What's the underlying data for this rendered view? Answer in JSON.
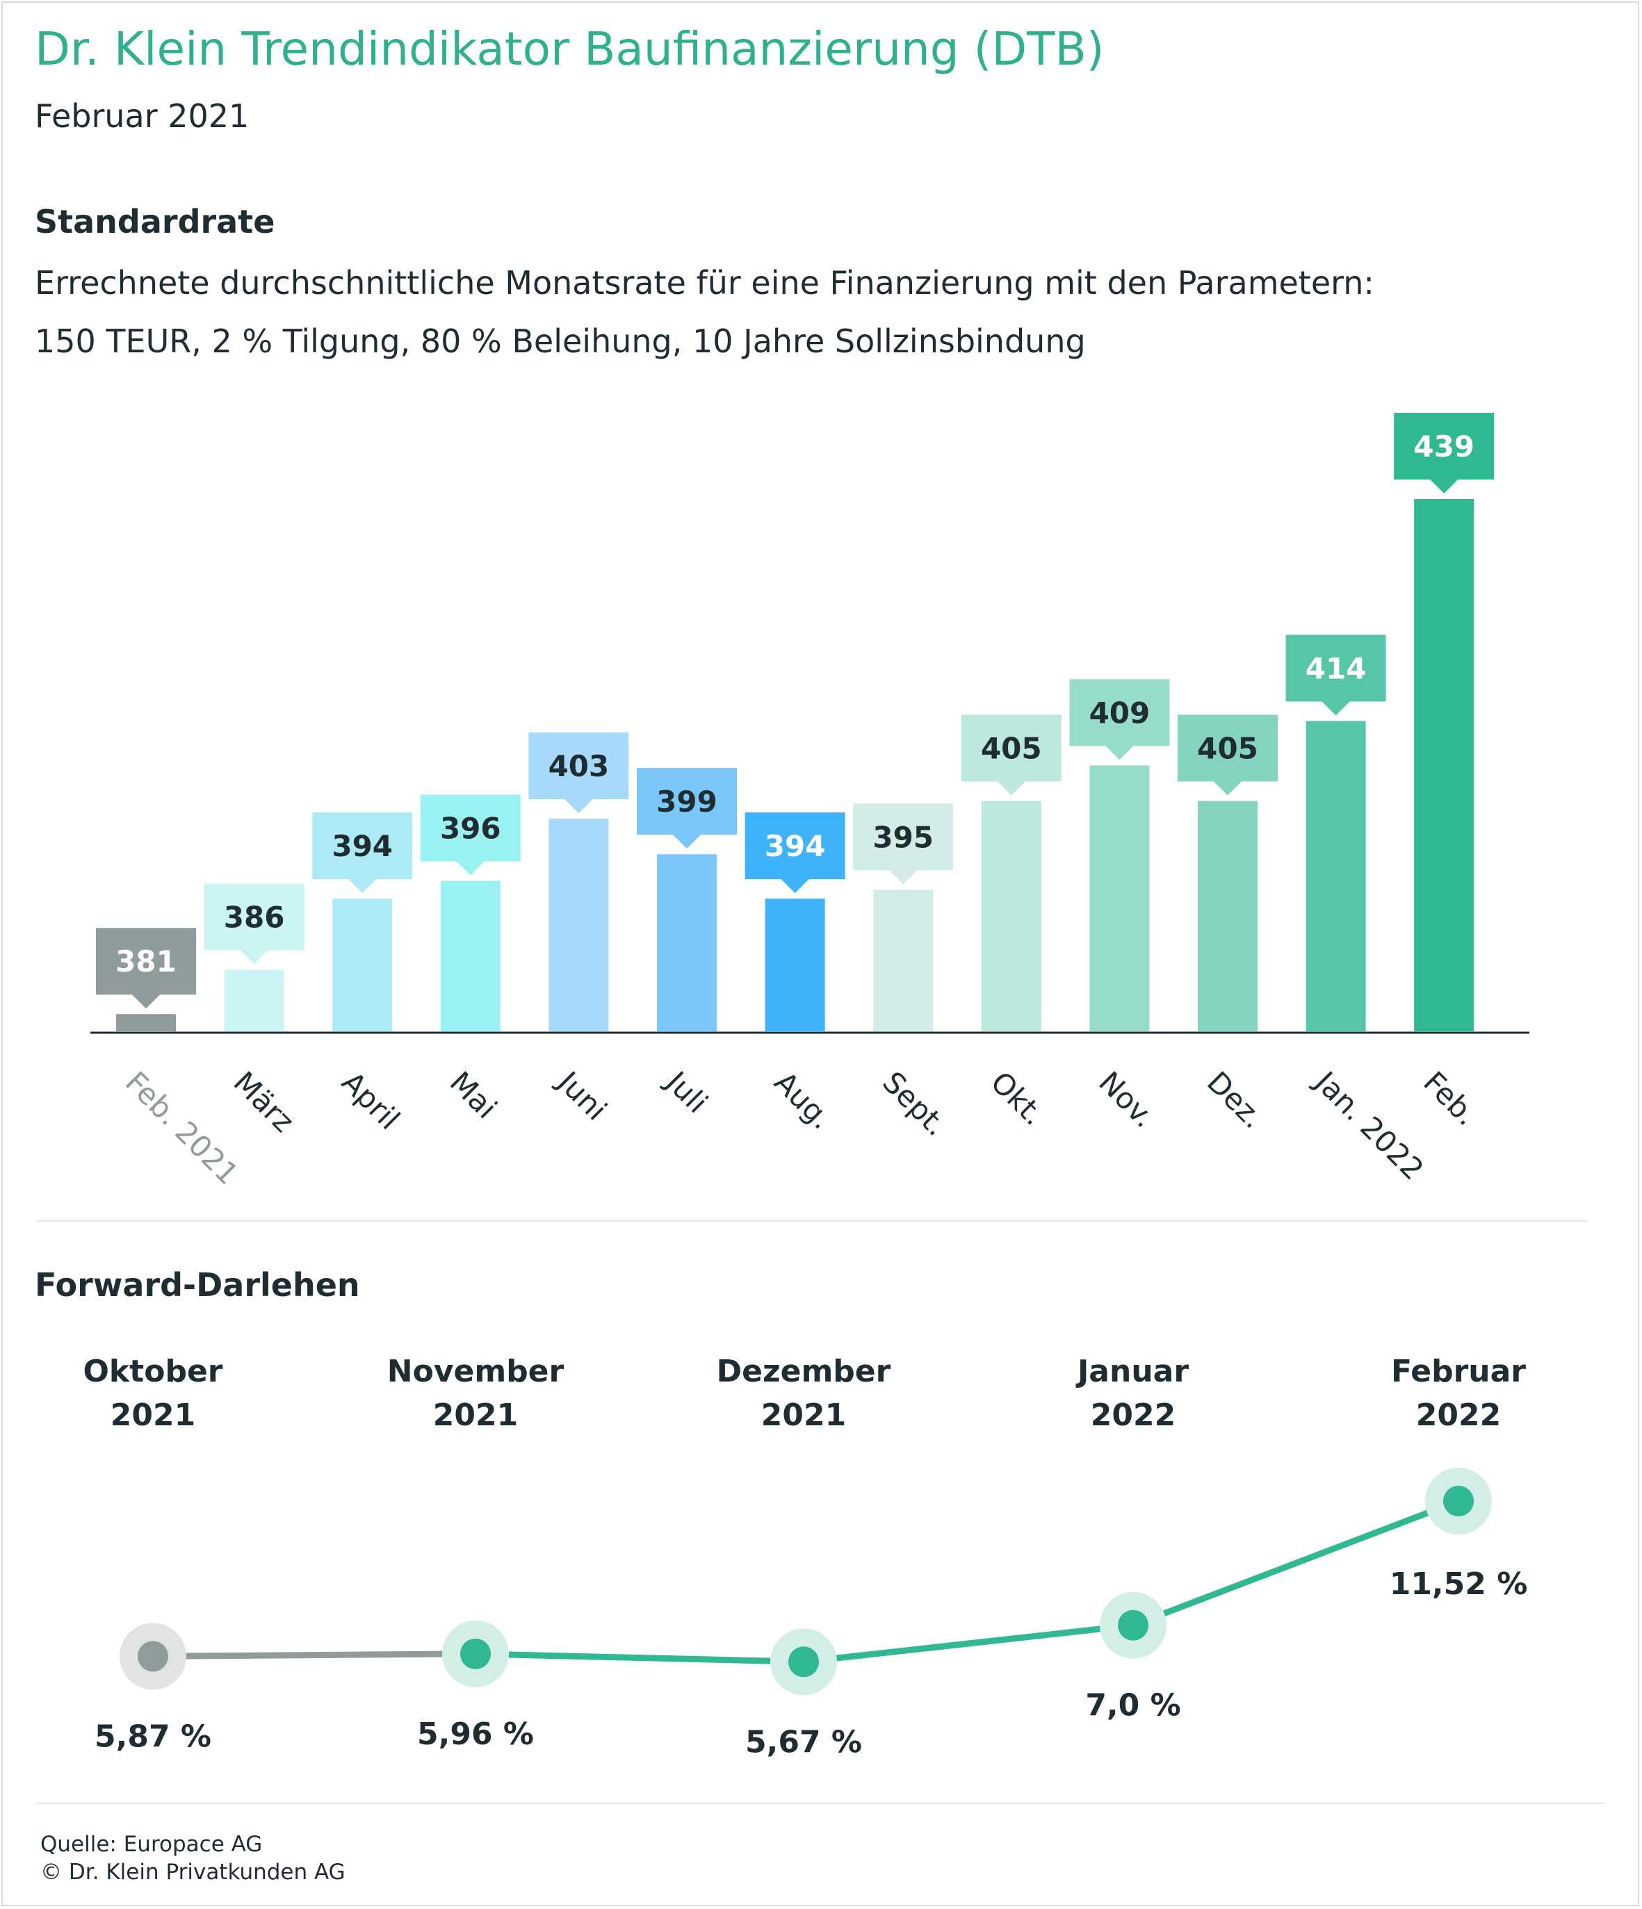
{
  "header": {
    "title": "Dr. Klein Trendindikator Baufinanzierung (DTB)",
    "subtitle": "Februar 2021"
  },
  "standardrate": {
    "heading": "Standardrate",
    "description_line1": "Errechnete durchschnittliche Monatsrate für eine Finanzierung mit den Parametern:",
    "description_line2": "150 TEUR, 2 % Tilgung, 80 % Beleihung, 10 Jahre Sollzinsbindung"
  },
  "forward": {
    "heading": "Forward-Darlehen"
  },
  "footer": {
    "source": "Quelle: Europace AG",
    "copyright": "© Dr. Klein Privatkunden AG"
  },
  "chart_data": [
    {
      "type": "bar",
      "title": "Standardrate",
      "categories": [
        "Feb. 2021",
        "März",
        "April",
        "Mai",
        "Juni",
        "Juli",
        "Aug.",
        "Sept.",
        "Okt.",
        "Nov.",
        "Dez.",
        "Jan. 2022",
        "Feb."
      ],
      "values": [
        381,
        386,
        394,
        396,
        403,
        399,
        394,
        395,
        405,
        409,
        405,
        414,
        439
      ],
      "bar_colors": [
        "#8f9c9b",
        "#cbf5f4",
        "#aeeaf6",
        "#99f2f1",
        "#a7d9fb",
        "#7bc7fa",
        "#3eb3fc",
        "#d4ece7",
        "#bde8dd",
        "#97dbc9",
        "#84d3bf",
        "#56c5a8",
        "#2fb891"
      ],
      "label_colors": [
        "#8f9c9b",
        "#cbf5f4",
        "#aeeaf6",
        "#99f2f1",
        "#a7d9fb",
        "#7bc7fa",
        "#3eb3fc",
        "#d4ece7",
        "#bde8dd",
        "#97dbc9",
        "#84d3bf",
        "#56c5a8",
        "#2fb891"
      ],
      "label_text_colors": [
        "#ffffff",
        "#1f2d33",
        "#1f2d33",
        "#1f2d33",
        "#1f2d33",
        "#1f2d33",
        "#ffffff",
        "#1f2d33",
        "#1f2d33",
        "#1f2d33",
        "#1f2d33",
        "#ffffff",
        "#ffffff"
      ],
      "tick_colors": [
        "#8f9c9b",
        "#1f2d33",
        "#1f2d33",
        "#1f2d33",
        "#1f2d33",
        "#1f2d33",
        "#1f2d33",
        "#1f2d33",
        "#1f2d33",
        "#1f2d33",
        "#1f2d33",
        "#1f2d33",
        "#1f2d33"
      ],
      "axis_color": "#1f2d33",
      "grid": false
    },
    {
      "type": "line",
      "title": "Forward-Darlehen",
      "categories": [
        {
          "month": "Oktober",
          "year": "2021"
        },
        {
          "month": "November",
          "year": "2021"
        },
        {
          "month": "Dezember",
          "year": "2021"
        },
        {
          "month": "Januar",
          "year": "2022"
        },
        {
          "month": "Februar",
          "year": "2022"
        }
      ],
      "values": [
        5.87,
        5.96,
        5.67,
        7.0,
        11.52
      ],
      "value_labels": [
        "5,87 %",
        "5,96 %",
        "5,67 %",
        "7,0 %",
        "11,52 %"
      ],
      "colors": {
        "first_segment": "#8f9c9b",
        "line": "#2fb891",
        "halo_first": "#e1e4e3",
        "halo": "#d3eee6"
      },
      "grid": false
    }
  ]
}
